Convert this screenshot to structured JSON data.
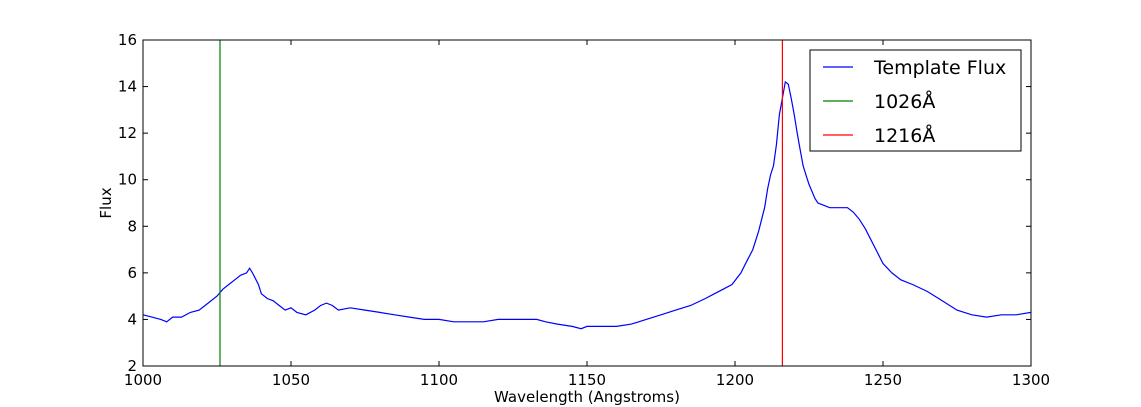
{
  "chart_data": {
    "type": "line",
    "title": "",
    "xlabel": "Wavelength (Angstroms)",
    "ylabel": "Flux",
    "xlim": [
      1000,
      1300
    ],
    "ylim": [
      2,
      16
    ],
    "xticks": [
      "1000",
      "1050",
      "1100",
      "1150",
      "1200",
      "1250",
      "1300"
    ],
    "yticks": [
      "2",
      "4",
      "6",
      "8",
      "10",
      "12",
      "14",
      "16"
    ],
    "grid": false,
    "legend_position": "top-right",
    "series": [
      {
        "name": "Template Flux",
        "color": "#0000ff",
        "x": [
          1000,
          1003,
          1006,
          1008,
          1010,
          1013,
          1016,
          1019,
          1022,
          1025,
          1027,
          1029,
          1031,
          1033,
          1035,
          1036,
          1037,
          1039,
          1040,
          1042,
          1044,
          1046,
          1048,
          1050,
          1052,
          1055,
          1058,
          1060,
          1062,
          1064,
          1066,
          1070,
          1075,
          1080,
          1085,
          1090,
          1095,
          1100,
          1105,
          1110,
          1115,
          1120,
          1125,
          1130,
          1133,
          1136,
          1140,
          1145,
          1148,
          1150,
          1155,
          1160,
          1165,
          1170,
          1175,
          1180,
          1185,
          1190,
          1193,
          1196,
          1199,
          1202,
          1204,
          1206,
          1208,
          1210,
          1211,
          1212,
          1213,
          1214,
          1215,
          1216,
          1217,
          1218,
          1219,
          1220,
          1221,
          1222,
          1223,
          1224,
          1225,
          1226,
          1227,
          1228,
          1230,
          1232,
          1234,
          1236,
          1238,
          1240,
          1242,
          1244,
          1246,
          1248,
          1250,
          1253,
          1256,
          1260,
          1265,
          1270,
          1275,
          1280,
          1285,
          1290,
          1295,
          1300
        ],
        "y": [
          4.2,
          4.1,
          4.0,
          3.9,
          4.1,
          4.1,
          4.3,
          4.4,
          4.7,
          5.0,
          5.3,
          5.5,
          5.7,
          5.9,
          6.0,
          6.2,
          6.0,
          5.5,
          5.1,
          4.9,
          4.8,
          4.6,
          4.4,
          4.5,
          4.3,
          4.2,
          4.4,
          4.6,
          4.7,
          4.6,
          4.4,
          4.5,
          4.4,
          4.3,
          4.2,
          4.1,
          4.0,
          4.0,
          3.9,
          3.9,
          3.9,
          4.0,
          4.0,
          4.0,
          4.0,
          3.9,
          3.8,
          3.7,
          3.6,
          3.7,
          3.7,
          3.7,
          3.8,
          4.0,
          4.2,
          4.4,
          4.6,
          4.9,
          5.1,
          5.3,
          5.5,
          6.0,
          6.5,
          7.0,
          7.8,
          8.8,
          9.6,
          10.2,
          10.6,
          11.5,
          12.8,
          13.5,
          14.2,
          14.1,
          13.5,
          12.8,
          12.0,
          11.3,
          10.6,
          10.2,
          9.8,
          9.5,
          9.2,
          9.0,
          8.9,
          8.8,
          8.8,
          8.8,
          8.8,
          8.6,
          8.3,
          7.9,
          7.4,
          6.9,
          6.4,
          6.0,
          5.7,
          5.5,
          5.2,
          4.8,
          4.4,
          4.2,
          4.1,
          4.2,
          4.2,
          4.3
        ]
      },
      {
        "name": "1026Å",
        "color": "#008000",
        "x": [
          1026,
          1026
        ],
        "y": [
          2,
          16
        ]
      },
      {
        "name": "1216Å",
        "color": "#ff0000",
        "x": [
          1216,
          1216
        ],
        "y": [
          2,
          16
        ]
      }
    ]
  }
}
